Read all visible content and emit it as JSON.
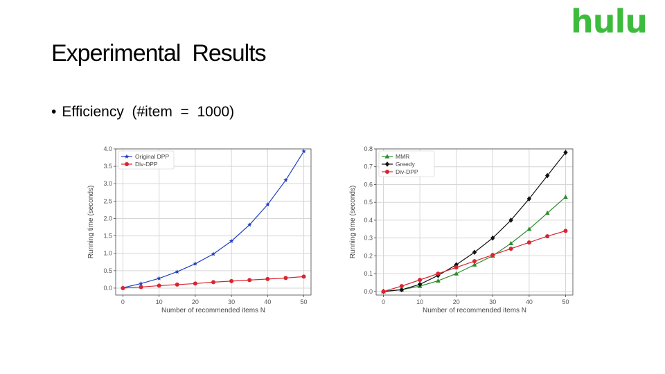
{
  "slide": {
    "title": "Experimental  Results",
    "logo": "hulu",
    "bullet": "Efficiency  (#item  =  1000)"
  },
  "chart_data": [
    {
      "type": "line",
      "xlabel": "Number of recommended items N",
      "ylabel": "Running time (seconds)",
      "xlim": [
        -2,
        52
      ],
      "ylim": [
        -0.2,
        4.0
      ],
      "xticks": [
        0,
        10,
        20,
        30,
        40,
        50
      ],
      "yticks": [
        0.0,
        0.5,
        1.0,
        1.5,
        2.0,
        2.5,
        3.0,
        3.5,
        4.0
      ],
      "grid": true,
      "legend_position": "top-left",
      "x": [
        0,
        5,
        10,
        15,
        20,
        25,
        30,
        35,
        40,
        45,
        50
      ],
      "series": [
        {
          "name": "Original DPP",
          "color": "#1f3fbf",
          "marker": "star",
          "values": [
            0.01,
            0.13,
            0.28,
            0.47,
            0.7,
            0.98,
            1.35,
            1.82,
            2.4,
            3.1,
            3.93
          ]
        },
        {
          "name": "Div-DPP",
          "color": "#d9252f",
          "marker": "circle",
          "values": [
            0.0,
            0.03,
            0.07,
            0.1,
            0.13,
            0.17,
            0.2,
            0.23,
            0.26,
            0.29,
            0.33
          ]
        }
      ]
    },
    {
      "type": "line",
      "xlabel": "Number of recommended items N",
      "ylabel": "Running time (seconds)",
      "xlim": [
        -2,
        52
      ],
      "ylim": [
        -0.02,
        0.8
      ],
      "xticks": [
        0,
        10,
        20,
        30,
        40,
        50
      ],
      "yticks": [
        0.0,
        0.1,
        0.2,
        0.3,
        0.4,
        0.5,
        0.6,
        0.7,
        0.8
      ],
      "grid": true,
      "legend_position": "top-left",
      "x": [
        0,
        5,
        10,
        15,
        20,
        25,
        30,
        35,
        40,
        45,
        50
      ],
      "series": [
        {
          "name": "MMR",
          "color": "#2e8b2e",
          "marker": "triangle",
          "values": [
            0.0,
            0.01,
            0.03,
            0.06,
            0.1,
            0.15,
            0.2,
            0.27,
            0.35,
            0.44,
            0.53
          ]
        },
        {
          "name": "Greedy",
          "color": "#111111",
          "marker": "diamond",
          "values": [
            0.0,
            0.01,
            0.04,
            0.09,
            0.15,
            0.22,
            0.3,
            0.4,
            0.52,
            0.65,
            0.78
          ]
        },
        {
          "name": "Div-DPP",
          "color": "#d9252f",
          "marker": "circle",
          "values": [
            0.0,
            0.03,
            0.065,
            0.1,
            0.135,
            0.17,
            0.205,
            0.24,
            0.275,
            0.31,
            0.34
          ]
        }
      ]
    }
  ]
}
